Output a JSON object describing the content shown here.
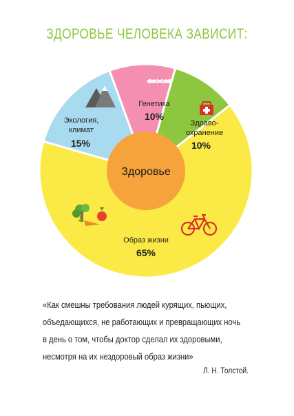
{
  "title": "ЗДОРОВЬЕ ЧЕЛОВЕКА ЗАВИСИТ:",
  "colors": {
    "title": "#8cc63f",
    "ecology": "#a8daf0",
    "genetics": "#f48fb1",
    "healthcare": "#8dc63f",
    "lifestyle": "#fbea45",
    "center": "#f6a33b"
  },
  "chart_data": {
    "type": "pie",
    "title": "ЗДОРОВЬЕ ЧЕЛОВЕКА ЗАВИСИТ:",
    "center_label": "Здоровье",
    "slices": [
      {
        "label": "Генетика",
        "value": 10,
        "value_label": "10%",
        "icon": "dna-icon"
      },
      {
        "label": "Здраво-охранение",
        "value": 10,
        "value_label": "10%",
        "icon": "first-aid-kit-icon"
      },
      {
        "label": "Образ жизни",
        "value": 65,
        "value_label": "65%",
        "icon": "bicycle-icon"
      },
      {
        "label": "Экология, климат",
        "value": 15,
        "value_label": "15%",
        "icon": "mountains-icon"
      }
    ],
    "lifestyle_extra_icon": "vegetables-icon"
  },
  "quote": {
    "lines": [
      "«Как смешны требования людей курящих, пьющих,",
      "объедающихся, не работающих и превращающих ночь",
      "в день о том, чтобы доктор сделал их здоровыми,",
      "несмотря на их нездоровый образ жизни»"
    ],
    "author": "Л. Н. Толстой."
  }
}
